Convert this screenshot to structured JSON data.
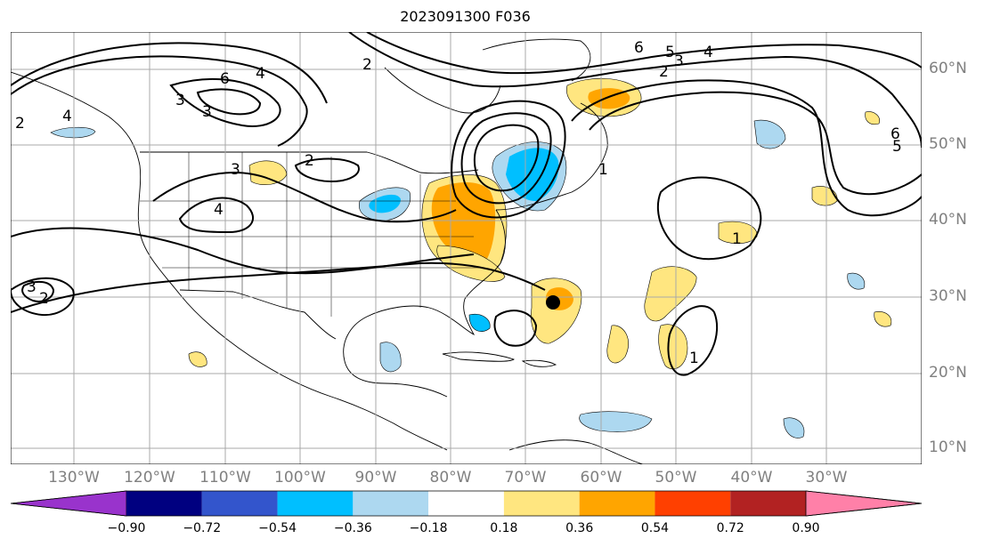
{
  "title": "2023091300 F036",
  "lat_labels": [
    "60°N",
    "50°N",
    "40°N",
    "30°N",
    "20°N",
    "10°N"
  ],
  "lon_labels": [
    "130°W",
    "120°W",
    "110°W",
    "100°W",
    "90°W",
    "80°W",
    "70°W",
    "60°W",
    "50°W",
    "40°W",
    "30°W"
  ],
  "colorbar": {
    "ticks": [
      "−0.90",
      "−0.72",
      "−0.54",
      "−0.36",
      "−0.18",
      "0.18",
      "0.36",
      "0.54",
      "0.72",
      "0.90"
    ],
    "colors": [
      "#9933cc",
      "#000080",
      "#3355cc",
      "#00bfff",
      "#add8f0",
      "#ffffff",
      "#ffe680",
      "#ffa500",
      "#ff4000",
      "#b22222",
      "#ff80a8"
    ]
  },
  "contour_labels": [
    "6",
    "5",
    "4",
    "3",
    "2",
    "1",
    "6",
    "4",
    "3",
    "2",
    "3",
    "4",
    "2",
    "1",
    "3",
    "2",
    "6",
    "5",
    "4",
    "3",
    "2",
    "1"
  ],
  "colors": {
    "grid": "#a9a9a9",
    "contour": "#000000",
    "coast": "#000000",
    "axis_text": "#808080"
  },
  "marker": "storm-center-dot"
}
